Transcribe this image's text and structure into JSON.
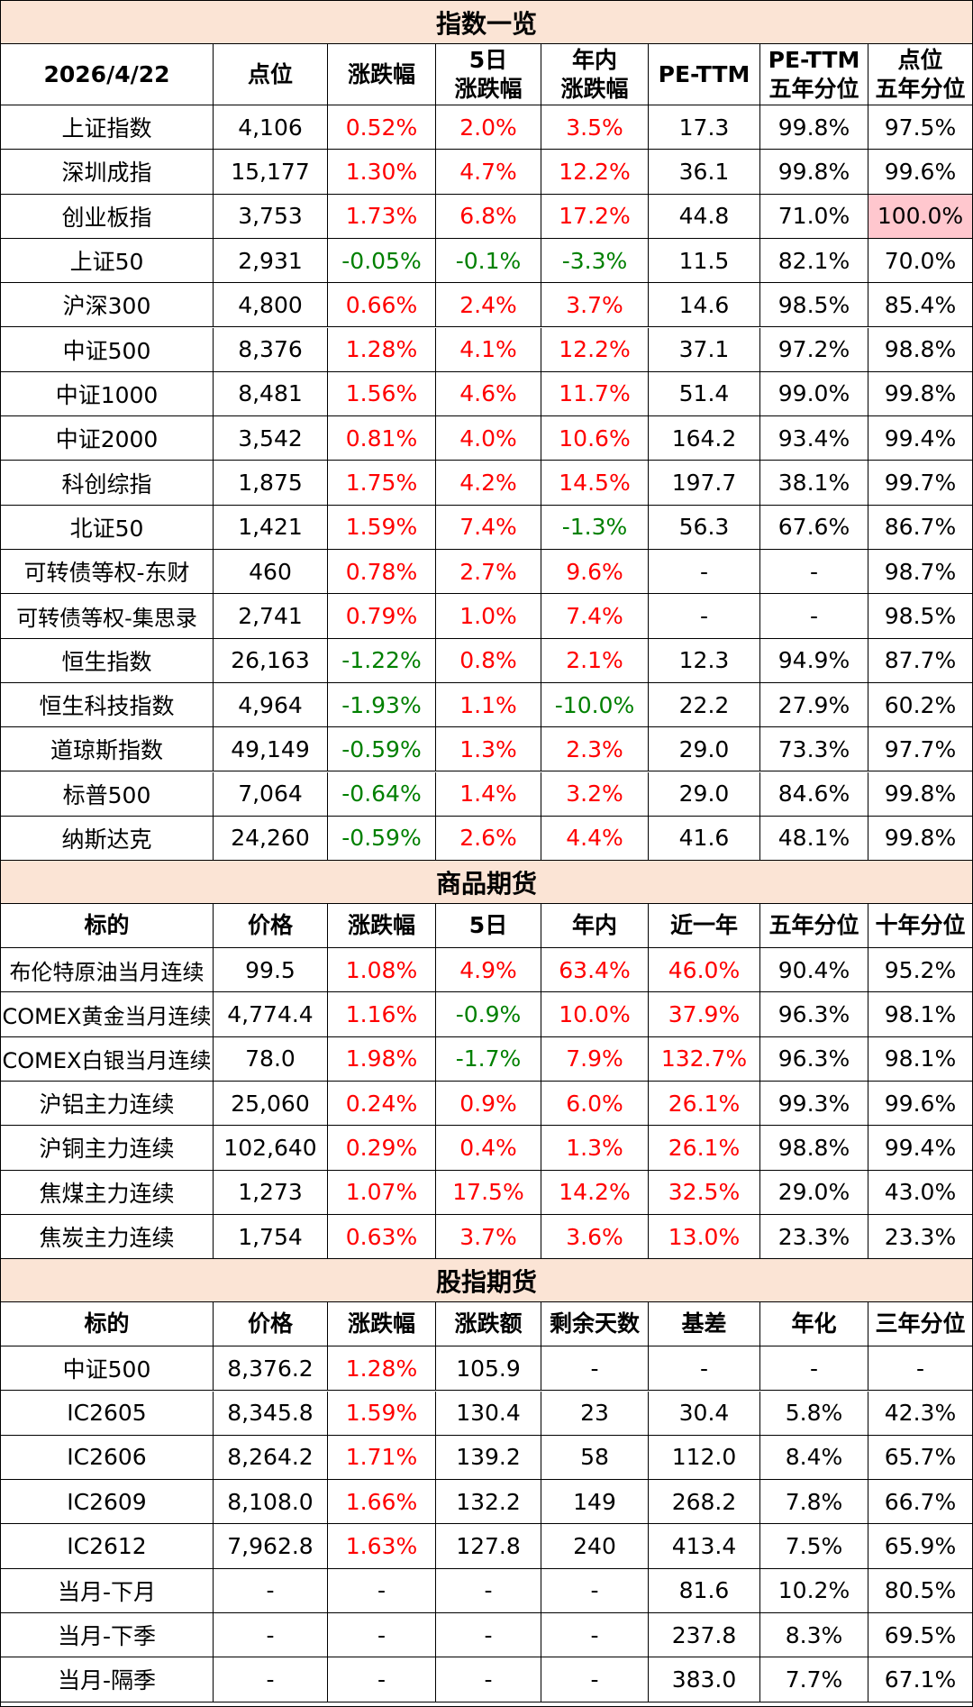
{
  "index_section": {
    "title": "指数一览",
    "headers": [
      "2026/4/22",
      "点位",
      "涨跌幅",
      "5日\n涨跌幅",
      "年内\n涨跌幅",
      "PE-TTM",
      "PE-TTM\n五年分位",
      "点位\n五年分位"
    ],
    "rows": [
      [
        "上证指数",
        "4,106",
        "0.52%",
        "2.0%",
        "3.5%",
        "17.3",
        "99.8%",
        "97.5%"
      ],
      [
        "深圳成指",
        "15,177",
        "1.30%",
        "4.7%",
        "12.2%",
        "36.1",
        "99.8%",
        "99.6%"
      ],
      [
        "创业板指",
        "3,753",
        "1.73%",
        "6.8%",
        "17.2%",
        "44.8",
        "71.0%",
        "100.0%"
      ],
      [
        "上证50",
        "2,931",
        "-0.05%",
        "-0.1%",
        "-3.3%",
        "11.5",
        "82.1%",
        "70.0%"
      ],
      [
        "沪深300",
        "4,800",
        "0.66%",
        "2.4%",
        "3.7%",
        "14.6",
        "98.5%",
        "85.4%"
      ],
      [
        "中证500",
        "8,376",
        "1.28%",
        "4.1%",
        "12.2%",
        "37.1",
        "97.2%",
        "98.8%"
      ],
      [
        "中证1000",
        "8,481",
        "1.56%",
        "4.6%",
        "11.7%",
        "51.4",
        "99.0%",
        "99.8%"
      ],
      [
        "中证2000",
        "3,542",
        "0.81%",
        "4.0%",
        "10.6%",
        "164.2",
        "93.4%",
        "99.4%"
      ],
      [
        "科创综指",
        "1,875",
        "1.75%",
        "4.2%",
        "14.5%",
        "197.7",
        "38.1%",
        "99.7%"
      ],
      [
        "北证50",
        "1,421",
        "1.59%",
        "7.4%",
        "-1.3%",
        "56.3",
        "67.6%",
        "86.7%"
      ],
      [
        "可转债等权-东财",
        "460",
        "0.78%",
        "2.7%",
        "9.6%",
        "-",
        "-",
        "98.7%"
      ],
      [
        "可转债等权-集思录",
        "2,741",
        "0.79%",
        "1.0%",
        "7.4%",
        "-",
        "-",
        "98.5%"
      ],
      [
        "恒生指数",
        "26,163",
        "-1.22%",
        "0.8%",
        "2.1%",
        "12.3",
        "94.9%",
        "87.7%"
      ],
      [
        "恒生科技指数",
        "4,964",
        "-1.93%",
        "1.1%",
        "-10.0%",
        "22.2",
        "27.9%",
        "60.2%"
      ],
      [
        "道琼斯指数",
        "49,149",
        "-0.59%",
        "1.3%",
        "2.3%",
        "29.0",
        "73.3%",
        "97.7%"
      ],
      [
        "标普500",
        "7,064",
        "-0.64%",
        "1.4%",
        "3.2%",
        "29.0",
        "84.6%",
        "99.8%"
      ],
      [
        "纳斯达克",
        "24,260",
        "-0.59%",
        "2.6%",
        "4.4%",
        "41.6",
        "48.1%",
        "99.8%"
      ]
    ]
  },
  "commodity_section": {
    "title": "商品期货",
    "headers": [
      "标的",
      "价格",
      "涨跌幅",
      "5日",
      "年内",
      "近一年",
      "五年分位",
      "十年分位"
    ],
    "rows": [
      [
        "布伦特原油当月连续",
        "99.5",
        "1.08%",
        "4.9%",
        "63.4%",
        "46.0%",
        "90.4%",
        "95.2%"
      ],
      [
        "COMEX黄金当月连续",
        "4,774.4",
        "1.16%",
        "-0.9%",
        "10.0%",
        "37.9%",
        "96.3%",
        "98.1%"
      ],
      [
        "COMEX白银当月连续",
        "78.0",
        "1.98%",
        "-1.7%",
        "7.9%",
        "132.7%",
        "96.3%",
        "98.1%"
      ],
      [
        "沪铝主力连续",
        "25,060",
        "0.24%",
        "0.9%",
        "6.0%",
        "26.1%",
        "99.3%",
        "99.6%"
      ],
      [
        "沪铜主力连续",
        "102,640",
        "0.29%",
        "0.4%",
        "1.3%",
        "26.1%",
        "98.8%",
        "99.4%"
      ],
      [
        "焦煤主力连续",
        "1,273",
        "1.07%",
        "17.5%",
        "14.2%",
        "32.5%",
        "29.0%",
        "43.0%"
      ],
      [
        "焦炭主力连续",
        "1,754",
        "0.63%",
        "3.7%",
        "3.6%",
        "13.0%",
        "23.3%",
        "23.3%"
      ]
    ]
  },
  "futures_section": {
    "title": "股指期货",
    "headers": [
      "标的",
      "价格",
      "涨跌幅",
      "涨跌额",
      "剩余天数",
      "基差",
      "年化",
      "三年分位"
    ],
    "rows": [
      [
        "中证500",
        "8,376.2",
        "1.28%",
        "105.9",
        "-",
        "-",
        "-",
        "-"
      ],
      [
        "IC2605",
        "8,345.8",
        "1.59%",
        "130.4",
        "23",
        "30.4",
        "5.8%",
        "42.3%"
      ],
      [
        "IC2606",
        "8,264.2",
        "1.71%",
        "139.2",
        "58",
        "112.0",
        "8.4%",
        "65.7%"
      ],
      [
        "IC2609",
        "8,108.0",
        "1.66%",
        "132.2",
        "149",
        "268.2",
        "7.8%",
        "66.7%"
      ],
      [
        "IC2612",
        "7,962.8",
        "1.63%",
        "127.8",
        "240",
        "413.4",
        "7.5%",
        "65.9%"
      ],
      [
        "当月-下月",
        "-",
        "-",
        "-",
        "-",
        "81.6",
        "10.2%",
        "80.5%"
      ],
      [
        "当月-下季",
        "-",
        "-",
        "-",
        "-",
        "237.8",
        "8.3%",
        "69.5%"
      ],
      [
        "当月-隔季",
        "-",
        "-",
        "-",
        "-",
        "383.0",
        "7.7%",
        "67.1%"
      ]
    ]
  },
  "colors": {
    "section_bg": "#fbe4d5",
    "positive": "#ff0000",
    "negative": "#008000",
    "highlight_bg": "#ffc7ce"
  }
}
